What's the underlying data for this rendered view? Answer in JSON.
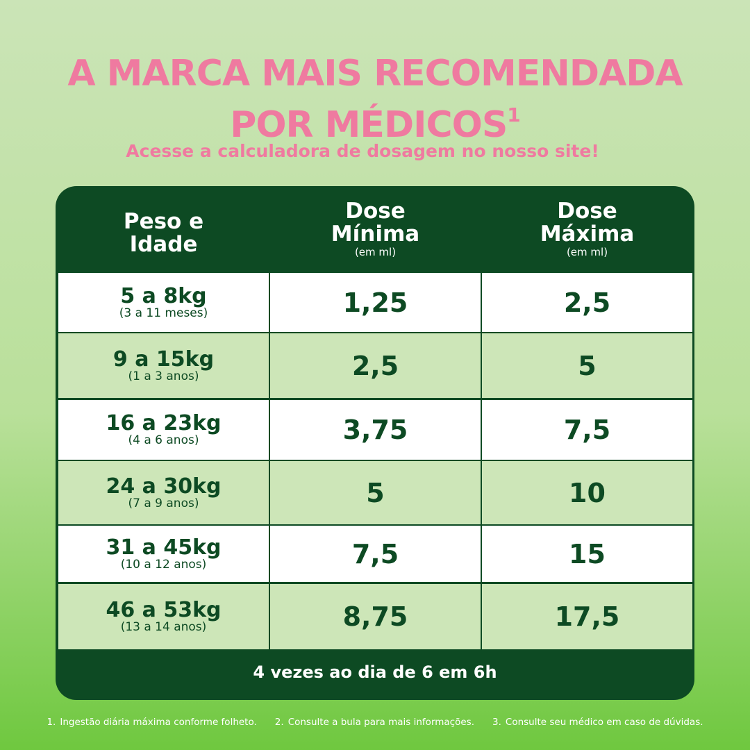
{
  "header": {
    "title_line1": "A MARCA MAIS RECOMENDADA",
    "title_line2": "POR MÉDICOS",
    "title_sup": "1",
    "subtitle": "Acesse a calculadora de dosagem no nosso site!"
  },
  "table": {
    "columns": [
      {
        "line1": "Peso e",
        "line2": "Idade"
      },
      {
        "line1": "Dose",
        "line2": "Mínima",
        "unit": "(em ml)"
      },
      {
        "line1": "Dose",
        "line2": "Máxima",
        "unit": "(em ml)"
      }
    ],
    "rows": [
      {
        "weight": "5 a 8kg",
        "age": "(3 a 11 meses)",
        "min": "1,25",
        "max": "2,5"
      },
      {
        "weight": "9 a 15kg",
        "age": "(1 a 3 anos)",
        "min": "2,5",
        "max": "5"
      },
      {
        "weight": "16 a 23kg",
        "age": "(4 a 6 anos)",
        "min": "3,75",
        "max": "7,5"
      },
      {
        "weight": "24 a 30kg",
        "age": "(7 a 9 anos)",
        "min": "5",
        "max": "10"
      },
      {
        "weight": "31 a 45kg",
        "age": "(10 a 12 anos)",
        "min": "7,5",
        "max": "15"
      },
      {
        "weight": "46 a 53kg",
        "age": "(13 a 14 anos)",
        "min": "8,75",
        "max": "17,5"
      }
    ],
    "footer": "4 vezes ao dia de 6 em 6h"
  },
  "footnotes": [
    {
      "number": "1.",
      "text": "Ingestão diária máxima conforme folheto."
    },
    {
      "number": "2.",
      "text": "Consulte a bula para mais informações."
    },
    {
      "number": "3.",
      "text": "Consulte seu médico em caso de dúvidas."
    }
  ]
}
